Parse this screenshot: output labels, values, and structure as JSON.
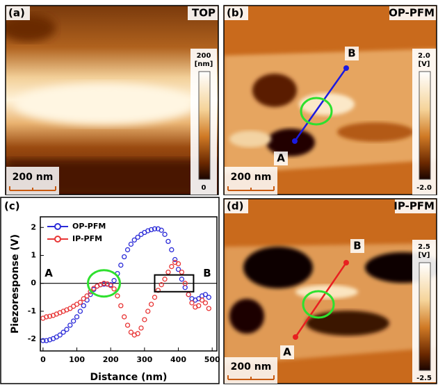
{
  "panels": {
    "a": {
      "label": "(a)",
      "title": "TOP",
      "colorbar": {
        "max": "200",
        "unit": "[nm]",
        "min": "0"
      },
      "scale_bar": "200 nm"
    },
    "b": {
      "label": "(b)",
      "title": "OP-PFM",
      "colorbar": {
        "max": "2.0",
        "unit": "[V]",
        "min": "-2.0"
      },
      "scale_bar": "200 nm",
      "start": "A",
      "end": "B"
    },
    "d": {
      "label": "(d)",
      "title": "IP-PFM",
      "colorbar": {
        "max": "2.5",
        "unit": "[V]",
        "min": "-2.5"
      },
      "scale_bar": "200 nm",
      "start": "A",
      "end": "B"
    }
  },
  "chart_data": {
    "type": "line",
    "panel_label": "(c)",
    "xlabel": "Distance (nm)",
    "ylabel": "Piezoresponse (V)",
    "start_label": "A",
    "end_label": "B",
    "x": [
      0,
      10,
      20,
      30,
      40,
      50,
      60,
      70,
      80,
      90,
      100,
      110,
      120,
      130,
      140,
      150,
      160,
      170,
      180,
      190,
      200,
      210,
      220,
      230,
      240,
      250,
      260,
      270,
      280,
      290,
      300,
      310,
      320,
      330,
      340,
      350,
      360,
      370,
      380,
      390,
      400,
      410,
      420,
      430,
      440,
      450,
      460,
      470,
      480,
      490
    ],
    "series": [
      {
        "name": "OP-PFM",
        "color": "#2b2bd8",
        "values": [
          -2.05,
          -2.05,
          -2.02,
          -1.98,
          -1.92,
          -1.85,
          -1.75,
          -1.65,
          -1.5,
          -1.35,
          -1.2,
          -1.0,
          -0.8,
          -0.6,
          -0.4,
          -0.22,
          -0.1,
          -0.05,
          -0.03,
          -0.03,
          -0.05,
          0.1,
          0.35,
          0.65,
          0.95,
          1.2,
          1.4,
          1.55,
          1.65,
          1.75,
          1.82,
          1.88,
          1.92,
          1.95,
          1.95,
          1.9,
          1.75,
          1.5,
          1.2,
          0.85,
          0.5,
          0.15,
          -0.15,
          -0.4,
          -0.55,
          -0.6,
          -0.55,
          -0.45,
          -0.4,
          -0.5
        ]
      },
      {
        "name": "IP-PFM",
        "color": "#e83535",
        "values": [
          -1.25,
          -1.2,
          -1.18,
          -1.15,
          -1.1,
          -1.05,
          -1.0,
          -0.95,
          -0.9,
          -0.82,
          -0.75,
          -0.68,
          -0.55,
          -0.45,
          -0.3,
          -0.18,
          -0.1,
          -0.05,
          0,
          -0.02,
          -0.08,
          -0.2,
          -0.45,
          -0.8,
          -1.2,
          -1.5,
          -1.75,
          -1.85,
          -1.8,
          -1.6,
          -1.3,
          -1.0,
          -0.75,
          -0.5,
          -0.25,
          -0.05,
          0.15,
          0.4,
          0.6,
          0.75,
          0.7,
          0.4,
          0.0,
          -0.4,
          -0.7,
          -0.85,
          -0.8,
          -0.6,
          -0.7,
          -0.9
        ]
      }
    ],
    "xlim": [
      -8,
      514
    ],
    "ylim": [
      -2.42,
      2.38
    ],
    "xticks": [
      0,
      100,
      200,
      300,
      400,
      500
    ],
    "yticks": [
      -2,
      -1,
      0,
      1,
      2
    ],
    "legend": "upper left"
  }
}
